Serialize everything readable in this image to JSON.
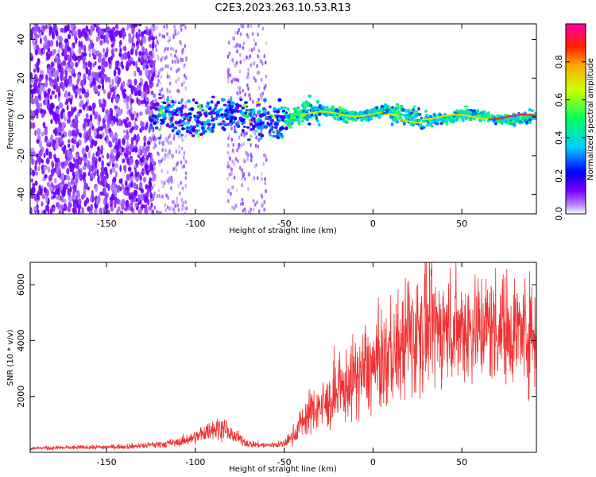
{
  "title": "C2E3.2023.263.10.53.R13",
  "chart_data": [
    {
      "type": "heatmap",
      "xlabel": "Height of straight line (km)",
      "ylabel": "Frequency (Hz)",
      "xlim": [
        -193,
        92
      ],
      "ylim": [
        -50,
        48
      ],
      "xticks": [
        -150,
        -100,
        -50,
        0,
        50
      ],
      "yticks": [
        -40,
        -20,
        0,
        20,
        40
      ],
      "colorbar": {
        "label": "Normalized spectral amplitude",
        "range": [
          0.0,
          1.0
        ],
        "ticks": [
          0.0,
          0.2,
          0.4,
          0.6,
          0.8
        ],
        "colormap": [
          "#ffffff",
          "#7b00ff",
          "#0000ff",
          "#00ffff",
          "#00ff00",
          "#ffff00",
          "#ff0000",
          "#ff00cc"
        ]
      },
      "description_regions": [
        {
          "x_range": [
            -193,
            -125
          ],
          "freq_spread": 48,
          "amplitude": 0.15
        },
        {
          "x_range": [
            -125,
            -50
          ],
          "freq_spread": 8,
          "amplitude": 0.35
        },
        {
          "x_range": [
            -50,
            92
          ],
          "freq_spread": 3,
          "amplitude": 0.7
        }
      ]
    },
    {
      "type": "line",
      "xlabel": "Height of straight line (km)",
      "ylabel": "SNR (10 * v/v)",
      "xlim": [
        -193,
        92
      ],
      "ylim": [
        0,
        6800
      ],
      "xticks": [
        -150,
        -100,
        -50,
        0,
        50
      ],
      "yticks": [
        2000,
        4000,
        6000
      ],
      "color": "#f03030",
      "series": [
        {
          "x": [
            -193,
            -170,
            -150,
            -130,
            -110,
            -100,
            -90,
            -85,
            -80,
            -70,
            -60,
            -50,
            -45,
            -40,
            -35,
            -30,
            -25,
            -20,
            -15,
            -10,
            -5,
            0,
            5,
            10,
            15,
            20,
            25,
            30,
            35,
            40,
            50,
            60,
            70,
            80,
            92
          ],
          "values": [
            150,
            170,
            190,
            230,
            350,
            550,
            850,
            900,
            650,
            300,
            250,
            300,
            600,
            1100,
            1450,
            1650,
            1750,
            1950,
            2400,
            2700,
            2900,
            3000,
            3200,
            3500,
            3700,
            4100,
            4300,
            4450,
            4400,
            4450,
            4450,
            4500,
            4500,
            4400,
            4250
          ]
        }
      ]
    }
  ]
}
